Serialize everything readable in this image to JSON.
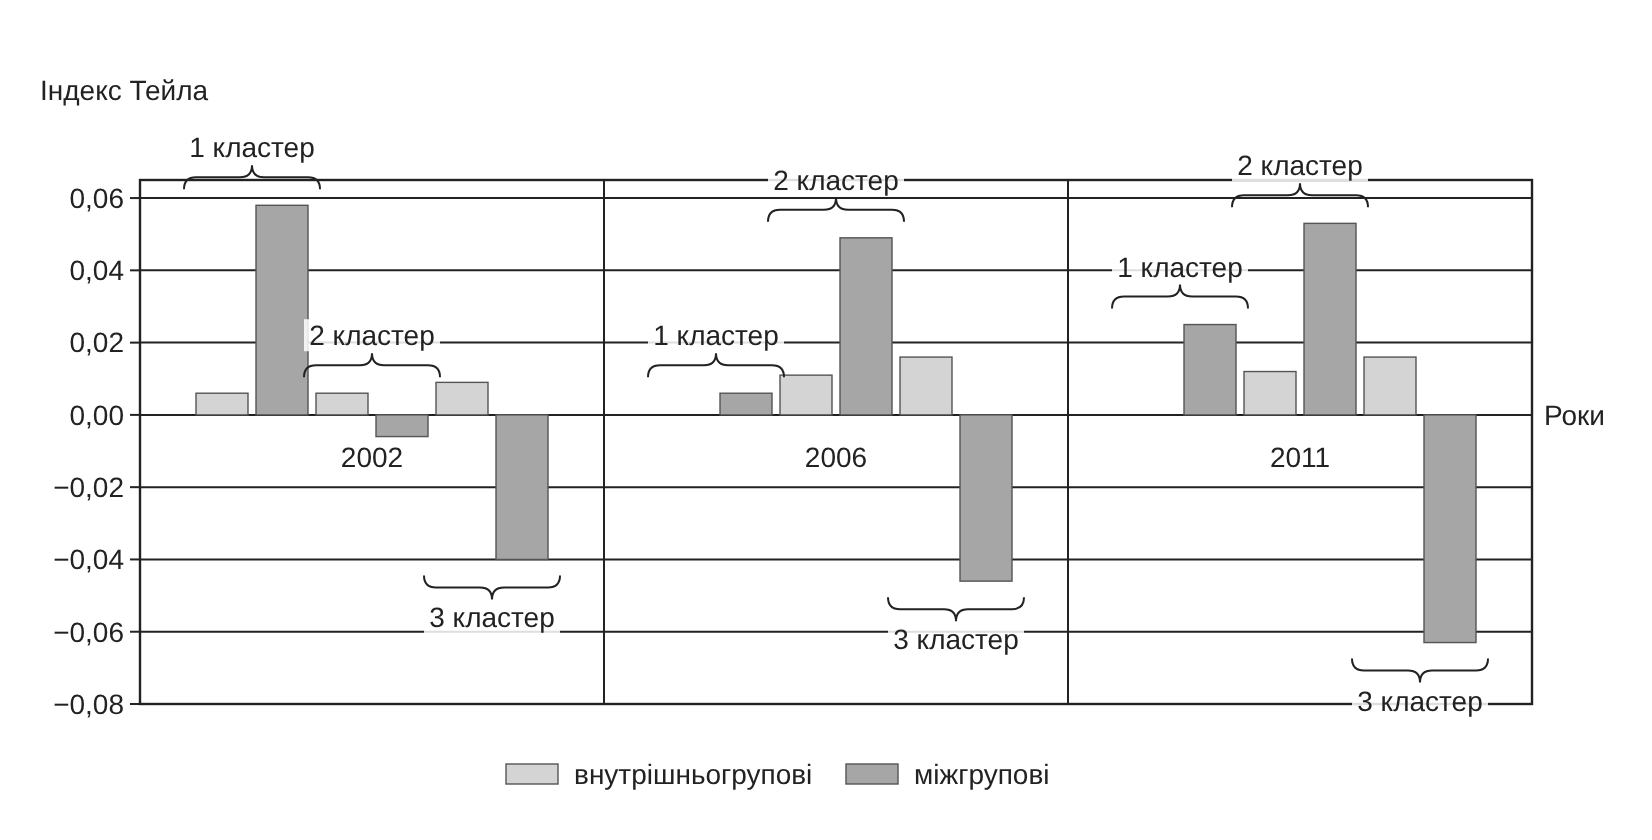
{
  "chart_data": {
    "type": "bar",
    "ylabel": "Індекс Тейла",
    "xlabel": "Роки",
    "categories": [
      "2002",
      "2006",
      "2011"
    ],
    "series": [
      {
        "name": "внутрішньогрупові",
        "color": "#d4d4d4",
        "values": [
          0.006,
          0,
          0
        ]
      },
      {
        "name": "міжгрупові",
        "color": "#a6a6a6",
        "values": [
          0.058,
          0.006,
          0.025
        ]
      },
      {
        "color": "#d4d4d4",
        "values": [
          0.006,
          0.011,
          0.012
        ]
      },
      {
        "color": "#a6a6a6",
        "values": [
          -0.006,
          0.049,
          0.053
        ]
      },
      {
        "color": "#d4d4d4",
        "values": [
          0.009,
          0.016,
          0.016
        ]
      },
      {
        "color": "#a6a6a6",
        "values": [
          -0.04,
          -0.046,
          -0.063
        ]
      }
    ],
    "ylim": [
      -0.08,
      0.065
    ],
    "yticks": [
      {
        "value": -0.08,
        "label": "−0,08"
      },
      {
        "value": -0.06,
        "label": "−0,06"
      },
      {
        "value": -0.04,
        "label": "−0,04"
      },
      {
        "value": -0.02,
        "label": "−0,02"
      },
      {
        "value": 0,
        "label": "0,00"
      },
      {
        "value": 0.02,
        "label": "0,02"
      },
      {
        "value": 0.04,
        "label": "0,04"
      },
      {
        "value": 0.06,
        "label": "0,06"
      }
    ],
    "grid": true,
    "legend": "bottom",
    "annotations": [
      "1 кластер",
      "2 кластер",
      "3 кластер",
      "1 кластер",
      "2 кластер",
      "3 кластер",
      "1 кластер",
      "2 кластер",
      "3 кластер"
    ]
  }
}
